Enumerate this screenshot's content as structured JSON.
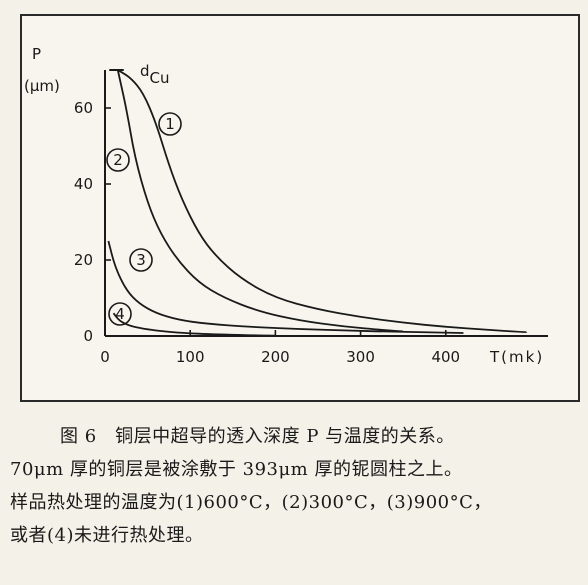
{
  "chart_data": {
    "type": "line",
    "ylabel_line1": "P",
    "ylabel_line2": "(μm)",
    "xlabel": "T(mk)",
    "xlim": [
      0,
      520
    ],
    "ylim": [
      0,
      70
    ],
    "x_ticks": [
      0,
      100,
      200,
      300,
      400
    ],
    "y_ticks": [
      0,
      20,
      40,
      60
    ],
    "annotation": "d",
    "annotation_sub": "Cu",
    "series": [
      {
        "name": "1",
        "x": [
          15,
          30,
          45,
          60,
          75,
          90,
          110,
          130,
          160,
          200,
          250,
          300,
          350,
          400,
          450,
          495
        ],
        "y": [
          70,
          68,
          64,
          56,
          45,
          36,
          27,
          21,
          15,
          10,
          7,
          5,
          3.5,
          2.4,
          1.6,
          1
        ]
      },
      {
        "name": "2",
        "x": [
          15,
          25,
          35,
          50,
          65,
          85,
          110,
          140,
          180,
          230,
          280,
          330,
          350
        ],
        "y": [
          70,
          60,
          47,
          35,
          27,
          20,
          14,
          10,
          6.5,
          4,
          2.5,
          1.5,
          1.2
        ]
      },
      {
        "name": "3",
        "x": [
          4,
          12,
          25,
          40,
          60,
          85,
          120,
          170,
          230,
          290,
          345,
          420
        ],
        "y": [
          25,
          18,
          12,
          8.5,
          6,
          4.3,
          3.2,
          2.4,
          1.8,
          1.4,
          1.1,
          0.8
        ]
      },
      {
        "name": "4",
        "x": [
          10,
          15,
          20,
          30,
          45,
          65,
          90,
          130,
          200
        ],
        "y": [
          6,
          4.5,
          3.6,
          2.6,
          1.9,
          1.3,
          0.8,
          0.4,
          0.1
        ]
      }
    ]
  },
  "caption": {
    "line1": "图 6　铜层中超导的透入深度 P 与温度的关系。",
    "line2": "70μm 厚的铜层是被涂敷于 393μm 厚的铌圆柱之上。",
    "line3": "样品热处理的温度为(1)600°C，(2)300°C，(3)900°C，",
    "line4": "或者(4)未进行热处理。"
  }
}
